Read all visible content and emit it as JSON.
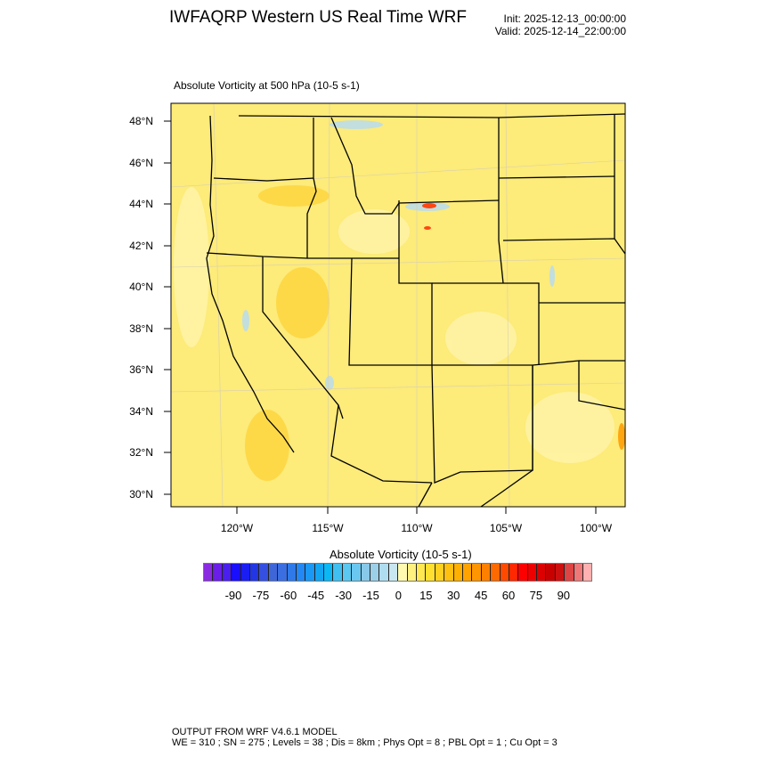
{
  "header": {
    "title": "IWFAQRP Western US Real Time WRF",
    "init": "Init: 2025-12-13_00:00:00",
    "valid": "Valid: 2025-12-14_22:00:00"
  },
  "plot": {
    "subtitle": "Absolute Vorticity at 500 hPa   (10-5 s-1)",
    "lat_labels": [
      "48°N",
      "46°N",
      "44°N",
      "42°N",
      "40°N",
      "38°N",
      "36°N",
      "34°N",
      "32°N",
      "30°N"
    ],
    "lon_labels": [
      "120°W",
      "115°W",
      "110°W",
      "105°W",
      "100°W"
    ],
    "field_colors": {
      "base": "#fdeb7a",
      "light": "#fff4a8",
      "warm": "#fdd640",
      "blue": "#b8dcf0",
      "red": "#ff2a00"
    }
  },
  "colorbar": {
    "title": "Absolute Vorticity  (10-5 s-1)",
    "labels": [
      "-90",
      "-75",
      "-60",
      "-45",
      "-30",
      "-15",
      "0",
      "15",
      "30",
      "45",
      "60",
      "75",
      "90"
    ],
    "colors": [
      "#8a2be2",
      "#6a1ee8",
      "#4b1ef0",
      "#1a0eff",
      "#1a1ef0",
      "#2236e6",
      "#3550e0",
      "#3f66d8",
      "#3b6ee0",
      "#2f7ae8",
      "#2288f5",
      "#1a98f5",
      "#12a5f2",
      "#0ab8f5",
      "#40c0f0",
      "#5ac8f0",
      "#6ac8f0",
      "#88c8e8",
      "#9ccfe8",
      "#b0dcf0",
      "#c8e6f0",
      "#fffab0",
      "#fff080",
      "#ffe850",
      "#ffe030",
      "#ffd020",
      "#ffc010",
      "#ffb000",
      "#ffa300",
      "#ff9500",
      "#ff8000",
      "#ff6a00",
      "#ff4a00",
      "#ff2800",
      "#ff0000",
      "#ee0000",
      "#dd0000",
      "#c80000",
      "#cc1010",
      "#dd4444",
      "#ee7777",
      "#ffb0b0"
    ]
  },
  "footer": {
    "line1": "OUTPUT FROM WRF V4.6.1 MODEL",
    "line2": "WE = 310 ; SN = 275 ; Levels = 38 ; Dis = 8km ; Phys Opt = 8 ; PBL Opt = 1 ; Cu Opt = 3"
  }
}
